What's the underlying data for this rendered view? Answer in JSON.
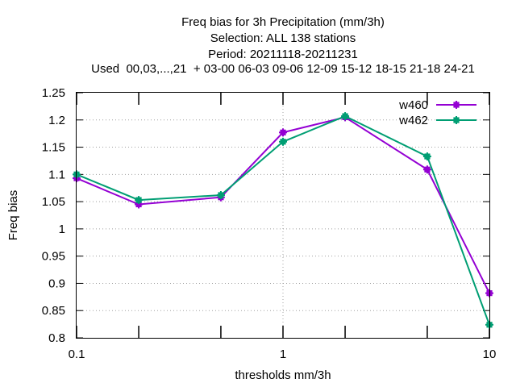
{
  "chart_data": {
    "type": "line",
    "title_lines": [
      "Freq bias  for 3h Precipitation (mm/3h)",
      "Selection: ALL     138 stations",
      "Period: 20211118-20211231",
      "Used  00,03,...,21  + 03-00 06-03 09-06 12-09 15-12 18-15 21-18 24-21"
    ],
    "xlabel": "thresholds mm/3h",
    "ylabel": "Freq bias",
    "xscale": "log",
    "xlim": [
      0.1,
      10
    ],
    "ylim": [
      0.8,
      1.25
    ],
    "x_ticks": [
      "0.1",
      "1",
      "10"
    ],
    "y_ticks": [
      "0.8",
      "0.85",
      "0.9",
      "0.95",
      "1",
      "1.05",
      "1.1",
      "1.15",
      "1.2",
      "1.25"
    ],
    "x": [
      0.1,
      0.2,
      0.5,
      1,
      2,
      5,
      10
    ],
    "grid": true,
    "legend_position": "top-right",
    "series": [
      {
        "name": "w460",
        "color": "#9400d3",
        "values": [
          1.093,
          1.045,
          1.058,
          1.177,
          1.205,
          1.109,
          0.882
        ]
      },
      {
        "name": "w462",
        "color": "#009e73",
        "values": [
          1.1,
          1.053,
          1.062,
          1.16,
          1.207,
          1.133,
          0.824
        ]
      }
    ]
  }
}
